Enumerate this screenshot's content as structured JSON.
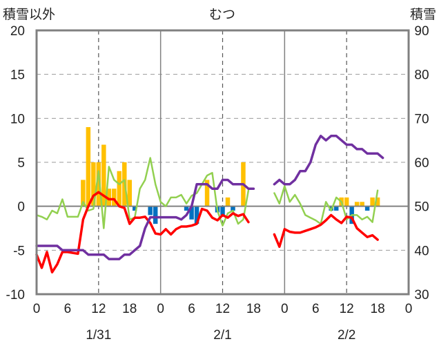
{
  "chart_data": {
    "type": "bar+line",
    "title": "むつ",
    "ylabel_left": "積雪以外",
    "ylabel_right": "積雪",
    "ylim_left": [
      -10,
      20
    ],
    "yticks_left": [
      "-10",
      "-5",
      "0",
      "5",
      "10",
      "15",
      "20"
    ],
    "ylim_right": [
      30,
      90
    ],
    "yticks_right": [
      "30",
      "40",
      "50",
      "60",
      "70",
      "80",
      "90"
    ],
    "x_tick_labels": [
      "0",
      "6",
      "12",
      "18",
      "0",
      "6",
      "12",
      "18",
      "0",
      "6",
      "12",
      "18",
      "0"
    ],
    "day_labels": [
      "1/31",
      "2/1",
      "2/2"
    ],
    "grid": "dashed vertical at hour 12 of each day",
    "colors": {
      "snowfall_positive": "#FFC000",
      "snowfall_negative": "#0070C0",
      "red_line": "#FF0000",
      "green_line": "#92D050",
      "purple_line": "#7030A0",
      "frame": "#808080",
      "zero_line": "#808080"
    },
    "bars": [
      {
        "h": 9,
        "v": 3.0
      },
      {
        "h": 10,
        "v": 9.0
      },
      {
        "h": 11,
        "v": 5.0
      },
      {
        "h": 12,
        "v": 5.0
      },
      {
        "h": 13,
        "v": 7.0
      },
      {
        "h": 14,
        "v": 2.0
      },
      {
        "h": 15,
        "v": 2.0
      },
      {
        "h": 16,
        "v": 4.0
      },
      {
        "h": 17,
        "v": 5.0
      },
      {
        "h": 18,
        "v": 3.0
      },
      {
        "h": 19,
        "v": -0.5
      },
      {
        "h": 22,
        "v": -1.0
      },
      {
        "h": 23,
        "v": -2.0
      },
      {
        "h": 29,
        "v": -0.5
      },
      {
        "h": 30,
        "v": -1.5
      },
      {
        "h": 31,
        "v": -2.0
      },
      {
        "h": 33,
        "v": 3.0
      },
      {
        "h": 35,
        "v": -0.7
      },
      {
        "h": 36,
        "v": -1.0
      },
      {
        "h": 37,
        "v": 1.0
      },
      {
        "h": 38,
        "v": -0.5
      },
      {
        "h": 40,
        "v": 5.0
      },
      {
        "h": 57,
        "v": -0.5
      },
      {
        "h": 58,
        "v": -0.5
      },
      {
        "h": 59,
        "v": 1.0
      },
      {
        "h": 60,
        "v": 1.0
      },
      {
        "h": 61,
        "v": -2.0
      },
      {
        "h": 62,
        "v": 0.5
      },
      {
        "h": 63,
        "v": 0.5
      },
      {
        "h": 64,
        "v": -0.5
      },
      {
        "h": 65,
        "v": 1.0
      },
      {
        "h": 66,
        "v": 1.0
      }
    ],
    "series": [
      {
        "color": "red",
        "axis": "left",
        "segments": [
          [
            [
              0,
              -5.5
            ],
            [
              1,
              -7
            ],
            [
              2,
              -5.2
            ],
            [
              3,
              -7.5
            ],
            [
              4,
              -6.6
            ],
            [
              5,
              -5.2
            ],
            [
              6,
              -5.2
            ],
            [
              7,
              -5.3
            ],
            [
              8,
              -5.4
            ],
            [
              9,
              -1.5
            ],
            [
              10,
              0.0
            ],
            [
              11,
              1.2
            ],
            [
              12,
              1.6
            ],
            [
              13,
              1.2
            ],
            [
              14,
              0.8
            ],
            [
              15,
              0.8
            ],
            [
              16,
              0.0
            ],
            [
              17,
              -0.2
            ],
            [
              18,
              -2.0
            ],
            [
              19,
              -1.3
            ],
            [
              20,
              -1.3
            ],
            [
              21,
              -1.2
            ],
            [
              22,
              -1.9
            ],
            [
              23,
              -3.1
            ],
            [
              24,
              -3.2
            ],
            [
              25,
              -2.6
            ],
            [
              26,
              -3.2
            ],
            [
              27,
              -2.6
            ],
            [
              28,
              -2.3
            ],
            [
              29,
              -2.3
            ],
            [
              30,
              -2.2
            ],
            [
              31,
              -2.0
            ],
            [
              32,
              -0.3
            ],
            [
              33,
              -0.5
            ],
            [
              34,
              -1.3
            ],
            [
              35,
              -1.6
            ],
            [
              36,
              -1.0
            ],
            [
              37,
              -1.3
            ],
            [
              38,
              -0.8
            ],
            [
              39,
              -1.1
            ],
            [
              40,
              -0.9
            ],
            [
              41,
              -1.8
            ]
          ],
          [
            [
              46,
              -3.2
            ],
            [
              47,
              -4.6
            ],
            [
              48,
              -2.6
            ],
            [
              49,
              -2.9
            ],
            [
              50,
              -3.0
            ],
            [
              51,
              -3.0
            ],
            [
              52,
              -2.8
            ],
            [
              53,
              -2.6
            ],
            [
              54,
              -2.4
            ],
            [
              55,
              -2.1
            ],
            [
              56,
              -1.6
            ],
            [
              57,
              -1.0
            ],
            [
              58,
              -1.5
            ],
            [
              59,
              -1.9
            ],
            [
              60,
              -1.2
            ],
            [
              61,
              -1.3
            ],
            [
              62,
              -2.5
            ],
            [
              63,
              -3.0
            ],
            [
              64,
              -3.5
            ],
            [
              65,
              -3.3
            ],
            [
              66,
              -3.8
            ]
          ]
        ]
      },
      {
        "color": "green",
        "axis": "left",
        "segments": [
          [
            [
              0,
              -1.0
            ],
            [
              1,
              -1.2
            ],
            [
              2,
              -1.5
            ],
            [
              3,
              -0.5
            ],
            [
              4,
              -0.8
            ],
            [
              5,
              0.8
            ],
            [
              6,
              -1.2
            ],
            [
              7,
              -1.2
            ],
            [
              8,
              -1.2
            ],
            [
              9,
              0.5
            ],
            [
              10,
              -0.5
            ],
            [
              11,
              -0.3
            ],
            [
              12,
              4.0
            ],
            [
              13,
              -2.5
            ],
            [
              14,
              4.5
            ],
            [
              15,
              3.0
            ],
            [
              16,
              2.5
            ],
            [
              17,
              3.0
            ],
            [
              18,
              -1.5
            ],
            [
              19,
              -1.3
            ],
            [
              20,
              2.0
            ],
            [
              21,
              3.0
            ],
            [
              22,
              5.5
            ],
            [
              23,
              2.5
            ],
            [
              24,
              0.5
            ],
            [
              25,
              0.0
            ],
            [
              26,
              1.0
            ],
            [
              27,
              1.0
            ],
            [
              28,
              1.3
            ],
            [
              29,
              0.3
            ],
            [
              30,
              1.2
            ],
            [
              31,
              1.5
            ],
            [
              32,
              2.5
            ],
            [
              33,
              3.5
            ],
            [
              34,
              3.8
            ],
            [
              35,
              -0.5
            ],
            [
              36,
              -2.2
            ],
            [
              37,
              -0.8
            ],
            [
              38,
              -0.5
            ],
            [
              39,
              -2.0
            ],
            [
              40,
              -1.5
            ],
            [
              41,
              1.8
            ]
          ],
          [
            [
              46,
              1.5
            ],
            [
              47,
              0.3
            ],
            [
              48,
              2.3
            ],
            [
              49,
              0.5
            ],
            [
              50,
              1.3
            ],
            [
              51,
              0.3
            ],
            [
              52,
              -1.0
            ],
            [
              53,
              -1.3
            ],
            [
              54,
              -1.6
            ],
            [
              55,
              -2.0
            ],
            [
              56,
              0.5
            ],
            [
              57,
              -0.5
            ],
            [
              58,
              1.0
            ],
            [
              59,
              0.5
            ],
            [
              60,
              -1.5
            ],
            [
              61,
              -1.0
            ],
            [
              62,
              -1.0
            ],
            [
              63,
              -1.5
            ],
            [
              64,
              -1.2
            ],
            [
              65,
              -1.8
            ],
            [
              66,
              1.8
            ]
          ]
        ]
      },
      {
        "color": "purple",
        "axis": "right",
        "segments": [
          [
            [
              0,
              41.0
            ],
            [
              4,
              41.0
            ],
            [
              5,
              40.0
            ],
            [
              9,
              40.0
            ],
            [
              10,
              39.0
            ],
            [
              13,
              39.0
            ],
            [
              14,
              38.0
            ],
            [
              16,
              38.0
            ],
            [
              17,
              39.0
            ],
            [
              18,
              39.0
            ],
            [
              19,
              40.0
            ],
            [
              20,
              41.0
            ],
            [
              21,
              45.0
            ],
            [
              22,
              47.5
            ],
            [
              27,
              47.5
            ],
            [
              28,
              47.0
            ],
            [
              29,
              48.0
            ],
            [
              30,
              50.0
            ],
            [
              31,
              55.0
            ],
            [
              33,
              55.0
            ],
            [
              34,
              54.0
            ],
            [
              35,
              54.0
            ],
            [
              36,
              56.0
            ],
            [
              37,
              56.0
            ],
            [
              38,
              55.0
            ],
            [
              40,
              55.0
            ],
            [
              41,
              54.0
            ],
            [
              42,
              54.0
            ]
          ],
          [
            [
              46,
              55.0
            ],
            [
              47,
              56.0
            ],
            [
              48,
              55.0
            ],
            [
              49,
              55.0
            ],
            [
              50,
              56.0
            ],
            [
              51,
              58.0
            ],
            [
              52,
              58.0
            ],
            [
              53,
              60.0
            ],
            [
              54,
              64.0
            ],
            [
              55,
              66.0
            ],
            [
              56,
              65.0
            ],
            [
              57,
              66.0
            ],
            [
              58,
              66.0
            ],
            [
              59,
              65.0
            ],
            [
              60,
              64.0
            ],
            [
              61,
              64.0
            ],
            [
              62,
              63.0
            ],
            [
              63,
              63.0
            ],
            [
              64,
              62.0
            ],
            [
              65,
              62.0
            ],
            [
              66,
              62.0
            ],
            [
              67,
              61.0
            ]
          ]
        ]
      }
    ]
  }
}
